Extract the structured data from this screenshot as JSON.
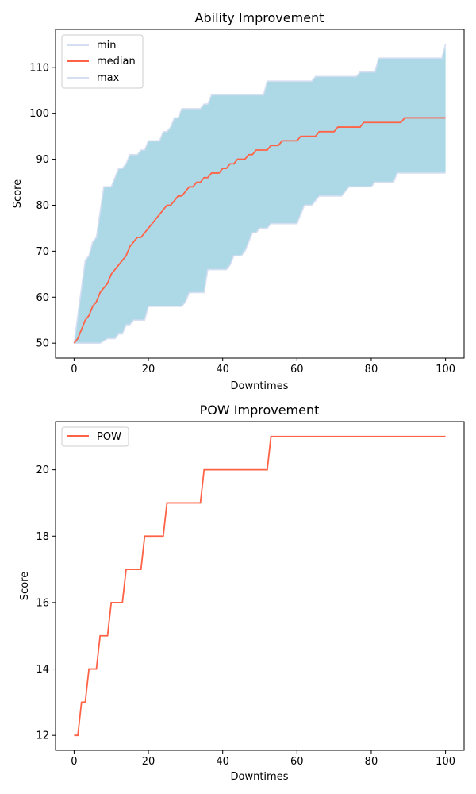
{
  "chart_data": [
    {
      "type": "area",
      "title": "Ability Improvement",
      "xlabel": "Downtimes",
      "ylabel": "Score",
      "xlim": [
        -5,
        105
      ],
      "ylim": [
        46.75,
        118.25
      ],
      "xticks": [
        0,
        20,
        40,
        60,
        80,
        100
      ],
      "yticks": [
        50,
        60,
        70,
        80,
        90,
        100,
        110
      ],
      "legend": {
        "position": "upper-left",
        "entries": [
          "min",
          "median",
          "max"
        ]
      },
      "colors": {
        "fill": "#add8e6",
        "bounds": "#d6def2",
        "median": "#ff6347"
      },
      "series": [
        {
          "name": "min",
          "x": [
            0,
            7,
            9,
            11,
            12,
            13,
            14,
            15,
            16,
            19,
            20,
            29,
            30,
            31,
            35,
            36,
            41,
            42,
            43,
            45,
            46,
            47,
            48,
            49,
            50,
            51,
            52,
            53,
            60,
            61,
            62,
            64,
            65,
            66,
            72,
            73,
            74,
            80,
            81,
            86,
            87,
            100
          ],
          "y": [
            50,
            50,
            51,
            51,
            52,
            52,
            54,
            54,
            55,
            55,
            58,
            58,
            59,
            61,
            61,
            66,
            66,
            67,
            69,
            69,
            70,
            72,
            74,
            74,
            75,
            75,
            75,
            76,
            76,
            78,
            80,
            80,
            81,
            82,
            82,
            83,
            84,
            84,
            85,
            85,
            87,
            87
          ]
        },
        {
          "name": "median",
          "x": [
            0,
            1,
            2,
            3,
            4,
            5,
            6,
            7,
            8,
            9,
            10,
            11,
            12,
            13,
            14,
            15,
            16,
            17,
            18,
            19,
            20,
            21,
            22,
            23,
            24,
            25,
            26,
            27,
            28,
            29,
            30,
            31,
            32,
            33,
            34,
            35,
            36,
            37,
            38,
            39,
            40,
            41,
            42,
            43,
            44,
            45,
            46,
            47,
            48,
            49,
            50,
            51,
            52,
            53,
            54,
            55,
            56,
            57,
            58,
            59,
            60,
            61,
            62,
            63,
            64,
            65,
            66,
            67,
            68,
            69,
            70,
            71,
            72,
            73,
            74,
            75,
            76,
            77,
            78,
            79,
            80,
            81,
            82,
            83,
            84,
            85,
            86,
            87,
            88,
            89,
            90,
            100
          ],
          "y": [
            50,
            51,
            53,
            55,
            56,
            58,
            59,
            61,
            62,
            63,
            65,
            66,
            67,
            68,
            69,
            71,
            72,
            73,
            73,
            74,
            75,
            76,
            77,
            78,
            79,
            80,
            80,
            81,
            82,
            82,
            83,
            84,
            84,
            85,
            85,
            86,
            86,
            87,
            87,
            87,
            88,
            88,
            89,
            89,
            90,
            90,
            90,
            91,
            91,
            92,
            92,
            92,
            92,
            93,
            93,
            93,
            94,
            94,
            94,
            94,
            94,
            95,
            95,
            95,
            95,
            95,
            96,
            96,
            96,
            96,
            96,
            97,
            97,
            97,
            97,
            97,
            97,
            97,
            98,
            98,
            98,
            98,
            98,
            98,
            98,
            98,
            98,
            98,
            98,
            99,
            99,
            99
          ]
        },
        {
          "name": "max",
          "x": [
            0,
            3,
            4,
            5,
            6,
            8,
            9,
            10,
            11,
            12,
            13,
            14,
            15,
            17,
            18,
            19,
            20,
            23,
            24,
            25,
            26,
            27,
            28,
            29,
            30,
            34,
            35,
            36,
            37,
            50,
            51,
            52,
            53,
            64,
            65,
            66,
            76,
            77,
            81,
            82,
            99,
            100
          ],
          "y": [
            50,
            68,
            69,
            72,
            73,
            84,
            84,
            84,
            86,
            88,
            88,
            89,
            91,
            91,
            92,
            92,
            94,
            94,
            96,
            96,
            97,
            99,
            99,
            101,
            101,
            101,
            102,
            102,
            104,
            104,
            104,
            107,
            107,
            107,
            108,
            108,
            108,
            109,
            109,
            112,
            112,
            115
          ]
        }
      ]
    },
    {
      "type": "line",
      "title": "POW Improvement",
      "xlabel": "Downtimes",
      "ylabel": "Score",
      "xlim": [
        -5,
        105
      ],
      "ylim": [
        11.55,
        21.45
      ],
      "xticks": [
        0,
        20,
        40,
        60,
        80,
        100
      ],
      "yticks": [
        12,
        14,
        16,
        18,
        20
      ],
      "legend": {
        "position": "upper-left",
        "entries": [
          "POW"
        ]
      },
      "colors": {
        "line": "#ff6347"
      },
      "series": [
        {
          "name": "POW",
          "x": [
            0,
            1,
            2,
            3,
            4,
            6,
            7,
            9,
            10,
            13,
            14,
            18,
            19,
            24,
            25,
            34,
            35,
            52,
            53,
            100
          ],
          "y": [
            12,
            12,
            13,
            13,
            14,
            14,
            15,
            15,
            16,
            16,
            17,
            17,
            18,
            18,
            19,
            19,
            20,
            20,
            21,
            21
          ]
        }
      ]
    }
  ]
}
